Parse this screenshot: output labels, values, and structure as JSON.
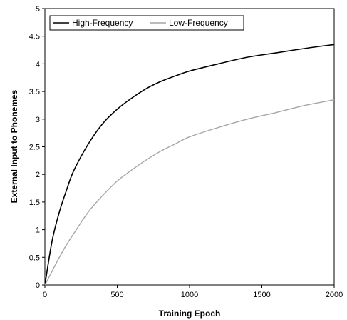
{
  "chart_data": {
    "type": "line",
    "title": "",
    "xlabel": "Training Epoch",
    "ylabel": "External Input to Phonemes",
    "xlim": [
      0,
      2000
    ],
    "ylim": [
      0,
      5
    ],
    "xticks": [
      "0",
      "500",
      "1000",
      "1500",
      "2000"
    ],
    "yticks": [
      "0",
      "0.5",
      "1",
      "1.5",
      "2",
      "2.5",
      "3",
      "3.5",
      "4",
      "4.5",
      "5"
    ],
    "grid": false,
    "legend_position": "top-left",
    "series": [
      {
        "name": "High-Frequency",
        "color": "#000000",
        "x": [
          0,
          50,
          100,
          150,
          200,
          300,
          400,
          500,
          600,
          700,
          800,
          900,
          1000,
          1200,
          1400,
          1600,
          1800,
          2000
        ],
        "y": [
          0,
          0.8,
          1.32,
          1.72,
          2.07,
          2.55,
          2.92,
          3.18,
          3.38,
          3.55,
          3.68,
          3.78,
          3.87,
          4.0,
          4.12,
          4.2,
          4.28,
          4.35
        ]
      },
      {
        "name": "Low-Frequency",
        "color": "#a6a6a6",
        "x": [
          0,
          50,
          100,
          150,
          200,
          300,
          400,
          500,
          600,
          700,
          800,
          900,
          1000,
          1200,
          1400,
          1600,
          1800,
          2000
        ],
        "y": [
          0,
          0.25,
          0.5,
          0.73,
          0.93,
          1.32,
          1.62,
          1.88,
          2.08,
          2.26,
          2.42,
          2.55,
          2.68,
          2.85,
          3.0,
          3.12,
          3.25,
          3.35
        ]
      }
    ]
  }
}
